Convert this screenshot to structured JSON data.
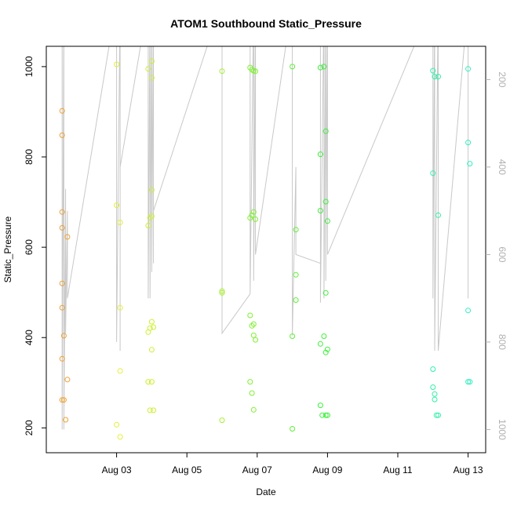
{
  "chart_data": {
    "type": "scatter",
    "title": "ATOM1 Southbound Static_Pressure",
    "xlabel": "Date",
    "ylabel": "Static_Pressure",
    "x_range": [
      "2023-08-01T00:00",
      "2023-08-13T12:00"
    ],
    "ylim": [
      145,
      1045
    ],
    "right_axis_range": [
      124,
      1053
    ],
    "x_ticks": [
      {
        "x": "2023-08-03T00:00",
        "label": "Aug 03"
      },
      {
        "x": "2023-08-05T00:00",
        "label": "Aug 05"
      },
      {
        "x": "2023-08-07T00:00",
        "label": "Aug 07"
      },
      {
        "x": "2023-08-09T00:00",
        "label": "Aug 09"
      },
      {
        "x": "2023-08-11T00:00",
        "label": "Aug 11"
      },
      {
        "x": "2023-08-13T00:00",
        "label": "Aug 13"
      }
    ],
    "y_ticks": [
      200,
      400,
      600,
      800,
      1000
    ],
    "right_ticks": [
      200,
      400,
      600,
      800,
      1000
    ],
    "grid": false,
    "legend": "none",
    "series": [
      {
        "color": "#f0a030",
        "points": [
          [
            "2023-08-01T10:48",
            902
          ],
          [
            "2023-08-01T10:48",
            848
          ],
          [
            "2023-08-01T10:48",
            678
          ],
          [
            "2023-08-01T10:48",
            643
          ],
          [
            "2023-08-01T10:48",
            520
          ],
          [
            "2023-08-01T10:48",
            466
          ],
          [
            "2023-08-01T10:48",
            353
          ],
          [
            "2023-08-01T10:48",
            262
          ],
          [
            "2023-08-01T12:00",
            262
          ],
          [
            "2023-08-01T12:00",
            404
          ],
          [
            "2023-08-01T14:24",
            623
          ],
          [
            "2023-08-01T14:24",
            307
          ],
          [
            "2023-08-01T13:12",
            218
          ]
        ]
      },
      {
        "color": "#e3ef38",
        "points": [
          [
            "2023-08-03T00:00",
            1005
          ],
          [
            "2023-08-03T00:00",
            693
          ],
          [
            "2023-08-03T02:24",
            655
          ],
          [
            "2023-08-03T02:24",
            466
          ],
          [
            "2023-08-03T02:24",
            326
          ],
          [
            "2023-08-03T00:00",
            207
          ],
          [
            "2023-08-03T02:24",
            180
          ]
        ]
      },
      {
        "color": "#ccf030",
        "points": [
          [
            "2023-08-03T21:36",
            995
          ],
          [
            "2023-08-03T21:36",
            648
          ],
          [
            "2023-08-03T21:36",
            412
          ],
          [
            "2023-08-03T21:36",
            302
          ],
          [
            "2023-08-03T22:48",
            239
          ],
          [
            "2023-08-03T22:48",
            665
          ],
          [
            "2023-08-03T22:48",
            421
          ],
          [
            "2023-08-04T00:00",
            1012
          ],
          [
            "2023-08-04T00:00",
            975
          ],
          [
            "2023-08-04T00:00",
            727
          ],
          [
            "2023-08-04T00:00",
            669
          ],
          [
            "2023-08-04T00:00",
            435
          ],
          [
            "2023-08-04T00:00",
            373
          ],
          [
            "2023-08-04T00:00",
            302
          ],
          [
            "2023-08-04T01:12",
            423
          ],
          [
            "2023-08-04T01:12",
            239
          ]
        ]
      },
      {
        "color": "#a6f030",
        "points": [
          [
            "2023-08-06T00:00",
            990
          ],
          [
            "2023-08-06T00:00",
            503
          ],
          [
            "2023-08-06T00:00",
            499
          ],
          [
            "2023-08-06T00:00",
            217
          ]
        ]
      },
      {
        "color": "#80f032",
        "points": [
          [
            "2023-08-06T19:12",
            998
          ],
          [
            "2023-08-06T19:12",
            665
          ],
          [
            "2023-08-06T19:12",
            449
          ],
          [
            "2023-08-06T19:12",
            302
          ],
          [
            "2023-08-06T20:24",
            993
          ],
          [
            "2023-08-06T20:24",
            671
          ],
          [
            "2023-08-06T20:24",
            426
          ],
          [
            "2023-08-06T20:24",
            277
          ],
          [
            "2023-08-06T21:36",
            991
          ],
          [
            "2023-08-06T21:36",
            678
          ],
          [
            "2023-08-06T21:36",
            430
          ],
          [
            "2023-08-06T21:36",
            405
          ],
          [
            "2023-08-06T21:36",
            240
          ],
          [
            "2023-08-06T22:48",
            990
          ],
          [
            "2023-08-06T22:48",
            662
          ],
          [
            "2023-08-06T22:48",
            395
          ]
        ]
      },
      {
        "color": "#5ef036",
        "points": [
          [
            "2023-08-08T00:00",
            1000
          ],
          [
            "2023-08-08T02:24",
            639
          ],
          [
            "2023-08-08T02:24",
            539
          ],
          [
            "2023-08-08T02:24",
            483
          ],
          [
            "2023-08-08T00:00",
            403
          ],
          [
            "2023-08-08T00:00",
            198
          ]
        ]
      },
      {
        "color": "#3ef03c",
        "points": [
          [
            "2023-08-08T19:12",
            998
          ],
          [
            "2023-08-08T19:12",
            806
          ],
          [
            "2023-08-08T19:12",
            681
          ],
          [
            "2023-08-08T19:12",
            386
          ],
          [
            "2023-08-08T19:12",
            250
          ],
          [
            "2023-08-08T21:36",
            1000
          ],
          [
            "2023-08-08T21:36",
            403
          ],
          [
            "2023-08-08T20:24",
            228
          ],
          [
            "2023-08-08T22:48",
            857
          ],
          [
            "2023-08-08T22:48",
            701
          ],
          [
            "2023-08-08T22:48",
            499
          ],
          [
            "2023-08-08T22:48",
            367
          ],
          [
            "2023-08-08T22:48",
            228
          ],
          [
            "2023-08-09T00:00",
            658
          ],
          [
            "2023-08-09T00:00",
            374
          ],
          [
            "2023-08-09T00:00",
            228
          ]
        ]
      },
      {
        "color": "#30f0a8",
        "points": [
          [
            "2023-08-12T00:00",
            991
          ],
          [
            "2023-08-12T00:00",
            764
          ],
          [
            "2023-08-12T00:00",
            330
          ],
          [
            "2023-08-12T00:00",
            290
          ],
          [
            "2023-08-12T01:12",
            978
          ],
          [
            "2023-08-12T01:12",
            275
          ],
          [
            "2023-08-12T01:12",
            263
          ],
          [
            "2023-08-12T03:36",
            978
          ],
          [
            "2023-08-12T03:36",
            671
          ],
          [
            "2023-08-12T02:24",
            228
          ],
          [
            "2023-08-12T03:36",
            228
          ]
        ]
      },
      {
        "color": "#30f0c0",
        "points": [
          [
            "2023-08-13T00:00",
            995
          ],
          [
            "2023-08-13T00:00",
            832
          ],
          [
            "2023-08-13T01:12",
            785
          ],
          [
            "2023-08-13T00:00",
            460
          ],
          [
            "2023-08-13T00:00",
            302
          ],
          [
            "2023-08-13T01:12",
            302
          ]
        ]
      }
    ],
    "secondary_line": {
      "color": "#c8c8c8",
      "note": "grey trace on right axis",
      "points": [
        [
          "2023-08-01T10:48",
          20
        ],
        [
          "2023-08-01T10:48",
          1000
        ],
        [
          "2023-08-01T12:00",
          20
        ],
        [
          "2023-08-01T12:00",
          1000
        ],
        [
          "2023-08-01T13:12",
          450
        ],
        [
          "2023-08-01T13:12",
          780
        ],
        [
          "2023-08-01T14:24",
          500
        ],
        [
          "2023-08-01T14:24",
          700
        ],
        [
          "2023-08-03T00:00",
          20
        ],
        [
          "2023-08-03T00:00",
          800
        ],
        [
          "2023-08-03T02:24",
          20
        ],
        [
          "2023-08-03T02:24",
          820
        ],
        [
          "2023-08-03T02:24",
          400
        ],
        [
          "2023-08-03T21:36",
          20
        ],
        [
          "2023-08-03T21:36",
          700
        ],
        [
          "2023-08-03T22:48",
          20
        ],
        [
          "2023-08-03T22:48",
          700
        ],
        [
          "2023-08-04T00:00",
          20
        ],
        [
          "2023-08-04T00:00",
          640
        ],
        [
          "2023-08-04T01:12",
          20
        ],
        [
          "2023-08-04T01:12",
          620
        ],
        [
          "2023-08-04T01:12",
          500
        ],
        [
          "2023-08-06T00:00",
          20
        ],
        [
          "2023-08-06T00:00",
          780
        ],
        [
          "2023-08-06T19:12",
          690
        ],
        [
          "2023-08-06T19:12",
          20
        ],
        [
          "2023-08-06T19:12",
          690
        ],
        [
          "2023-08-06T21:36",
          20
        ],
        [
          "2023-08-06T21:36",
          660
        ],
        [
          "2023-08-06T22:48",
          20
        ],
        [
          "2023-08-06T22:48",
          600
        ],
        [
          "2023-08-08T00:00",
          20
        ],
        [
          "2023-08-08T00:00",
          785
        ],
        [
          "2023-08-08T02:24",
          400
        ],
        [
          "2023-08-08T02:24",
          600
        ],
        [
          "2023-08-08T19:12",
          620
        ],
        [
          "2023-08-08T19:12",
          20
        ],
        [
          "2023-08-08T19:12",
          710
        ],
        [
          "2023-08-08T21:36",
          20
        ],
        [
          "2023-08-08T21:36",
          700
        ],
        [
          "2023-08-08T22:48",
          20
        ],
        [
          "2023-08-08T22:48",
          660
        ],
        [
          "2023-08-09T00:00",
          20
        ],
        [
          "2023-08-09T00:00",
          600
        ],
        [
          "2023-08-12T00:00",
          20
        ],
        [
          "2023-08-12T00:00",
          700
        ],
        [
          "2023-08-12T01:12",
          20
        ],
        [
          "2023-08-12T01:12",
          820
        ],
        [
          "2023-08-12T03:36",
          20
        ],
        [
          "2023-08-12T03:36",
          820
        ],
        [
          "2023-08-13T00:00",
          20
        ],
        [
          "2023-08-13T00:00",
          700
        ]
      ]
    }
  }
}
